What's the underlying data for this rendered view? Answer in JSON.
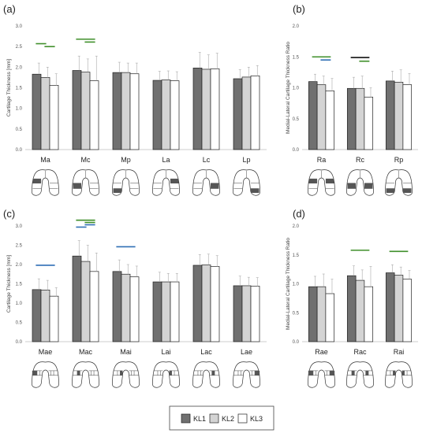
{
  "colors": {
    "KL1": "#707070",
    "KL2": "#d4d4d4",
    "KL3": "#ffffff",
    "green": "#3f8f2a",
    "blue": "#2f6fb5",
    "black": "#111111"
  },
  "legend": {
    "items": [
      "KL1",
      "KL2",
      "KL3"
    ]
  },
  "chart_data": [
    {
      "id": "a",
      "panel_label": "(a)",
      "type": "bar",
      "ylabel": "Cartilage Thickness [mm]",
      "ylim": [
        0,
        3.0
      ],
      "step": 0.5,
      "ytick_labels": [
        "0.0",
        "0.5",
        "1.0",
        "1.5",
        "2.0",
        "2.5",
        "3.0"
      ],
      "categories": [
        "Ma",
        "Mc",
        "Mp",
        "La",
        "Lc",
        "Lp"
      ],
      "series": [
        {
          "name": "KL1",
          "values": [
            1.83,
            1.92,
            1.87,
            1.68,
            1.98,
            1.72
          ],
          "err": [
            0.27,
            0.35,
            0.25,
            0.22,
            0.38,
            0.22
          ]
        },
        {
          "name": "KL2",
          "values": [
            1.75,
            1.88,
            1.87,
            1.69,
            1.95,
            1.76
          ],
          "err": [
            0.25,
            0.32,
            0.23,
            0.22,
            0.35,
            0.24
          ]
        },
        {
          "name": "KL3",
          "values": [
            1.56,
            1.67,
            1.84,
            1.67,
            1.96,
            1.79
          ],
          "err": [
            0.28,
            0.6,
            0.26,
            0.22,
            0.38,
            0.25
          ]
        }
      ],
      "sig_lines": [
        {
          "cat": 0,
          "from": 0,
          "to": 1,
          "y": 2.57,
          "color": "green"
        },
        {
          "cat": 0,
          "from": 1,
          "to": 2,
          "y": 2.5,
          "color": "green"
        },
        {
          "cat": 1,
          "from": 0,
          "to": 2,
          "y": 2.68,
          "color": "green"
        },
        {
          "cat": 1,
          "from": 1,
          "to": 2,
          "y": 2.61,
          "color": "green"
        }
      ],
      "knee_type": "mlp",
      "highlights": [
        "Ma",
        "Mc",
        "Mp",
        "La",
        "Lc",
        "Lp"
      ]
    },
    {
      "id": "b",
      "panel_label": "(b)",
      "type": "bar",
      "ylabel": "Medial-Lateral Cartilage Thickness Ratio",
      "ylim": [
        0,
        2.0
      ],
      "step": 0.5,
      "ytick_labels": [
        "0.0",
        "0.5",
        "1.0",
        "1.5",
        "2.0"
      ],
      "categories": [
        "Ra",
        "Rc",
        "Rp"
      ],
      "series": [
        {
          "name": "KL1",
          "values": [
            1.1,
            0.99,
            1.11
          ],
          "err": [
            0.12,
            0.18,
            0.16
          ]
        },
        {
          "name": "KL2",
          "values": [
            1.05,
            0.99,
            1.09
          ],
          "err": [
            0.14,
            0.2,
            0.2
          ]
        },
        {
          "name": "KL3",
          "values": [
            0.95,
            0.85,
            1.05
          ],
          "err": [
            0.2,
            0.15,
            0.18
          ]
        }
      ],
      "sig_lines": [
        {
          "cat": 0,
          "from": 0,
          "to": 2,
          "y": 1.5,
          "color": "green"
        },
        {
          "cat": 0,
          "from": 1,
          "to": 2,
          "y": 1.45,
          "color": "blue"
        },
        {
          "cat": 1,
          "from": 0,
          "to": 2,
          "y": 1.49,
          "color": "black"
        },
        {
          "cat": 1,
          "from": 1,
          "to": 2,
          "y": 1.43,
          "color": "green"
        }
      ],
      "knee_type": "ratio",
      "highlights": [
        "Ra",
        "Rc",
        "Rp"
      ]
    },
    {
      "id": "c",
      "panel_label": "(c)",
      "type": "bar",
      "ylabel": "Cartilage Thickness [mm]",
      "ylim": [
        0,
        3.0
      ],
      "step": 0.5,
      "ytick_labels": [
        "0.0",
        "0.5",
        "1.0",
        "1.5",
        "2.0",
        "2.5",
        "3.0"
      ],
      "categories": [
        "Mae",
        "Mac",
        "Mai",
        "Lai",
        "Lac",
        "Lae"
      ],
      "series": [
        {
          "name": "KL1",
          "values": [
            1.35,
            2.22,
            1.82,
            1.55,
            1.98,
            1.45
          ],
          "err": [
            0.28,
            0.4,
            0.3,
            0.25,
            0.28,
            0.25
          ]
        },
        {
          "name": "KL2",
          "values": [
            1.34,
            2.08,
            1.75,
            1.55,
            1.99,
            1.45
          ],
          "err": [
            0.25,
            0.42,
            0.25,
            0.22,
            0.28,
            0.22
          ]
        },
        {
          "name": "KL3",
          "values": [
            1.18,
            1.82,
            1.68,
            1.55,
            1.95,
            1.44
          ],
          "err": [
            0.22,
            0.48,
            0.28,
            0.22,
            0.28,
            0.22
          ]
        }
      ],
      "sig_lines": [
        {
          "cat": 0,
          "from": 0,
          "to": 2,
          "y": 1.98,
          "color": "blue"
        },
        {
          "cat": 1,
          "from": 0,
          "to": 2,
          "y": 3.15,
          "color": "green"
        },
        {
          "cat": 1,
          "from": 1,
          "to": 2,
          "y": 3.09,
          "color": "green"
        },
        {
          "cat": 1,
          "from": 1,
          "to": 2,
          "y": 3.03,
          "color": "blue"
        },
        {
          "cat": 1,
          "from": 0,
          "to": 1,
          "y": 2.97,
          "color": "blue"
        },
        {
          "cat": 2,
          "from": 0,
          "to": 2,
          "y": 2.46,
          "color": "blue"
        }
      ],
      "knee_type": "sub",
      "highlights": [
        "Mae",
        "Mac",
        "Mai",
        "Lai",
        "Lac",
        "Lae"
      ]
    },
    {
      "id": "d",
      "panel_label": "(d)",
      "type": "bar",
      "ylabel": "Medial-Lateral Cartilage Thickness Ratio",
      "ylim": [
        0,
        2.0
      ],
      "step": 0.5,
      "ytick_labels": [
        "0.0",
        "0.5",
        "1.0",
        "1.5",
        "2.0"
      ],
      "categories": [
        "Rae",
        "Rac",
        "Rai"
      ],
      "series": [
        {
          "name": "KL1",
          "values": [
            0.95,
            1.14,
            1.19
          ],
          "err": [
            0.18,
            0.17,
            0.14
          ]
        },
        {
          "name": "KL2",
          "values": [
            0.95,
            1.06,
            1.15
          ],
          "err": [
            0.22,
            0.18,
            0.14
          ]
        },
        {
          "name": "KL3",
          "values": [
            0.83,
            0.95,
            1.08
          ],
          "err": [
            0.25,
            0.35,
            0.15
          ]
        }
      ],
      "sig_lines": [
        {
          "cat": 1,
          "from": 0,
          "to": 2,
          "y": 1.58,
          "color": "green"
        },
        {
          "cat": 2,
          "from": 0,
          "to": 2,
          "y": 1.56,
          "color": "green"
        }
      ],
      "knee_type": "subratio",
      "highlights": [
        "Rae",
        "Rac",
        "Rai"
      ]
    }
  ]
}
